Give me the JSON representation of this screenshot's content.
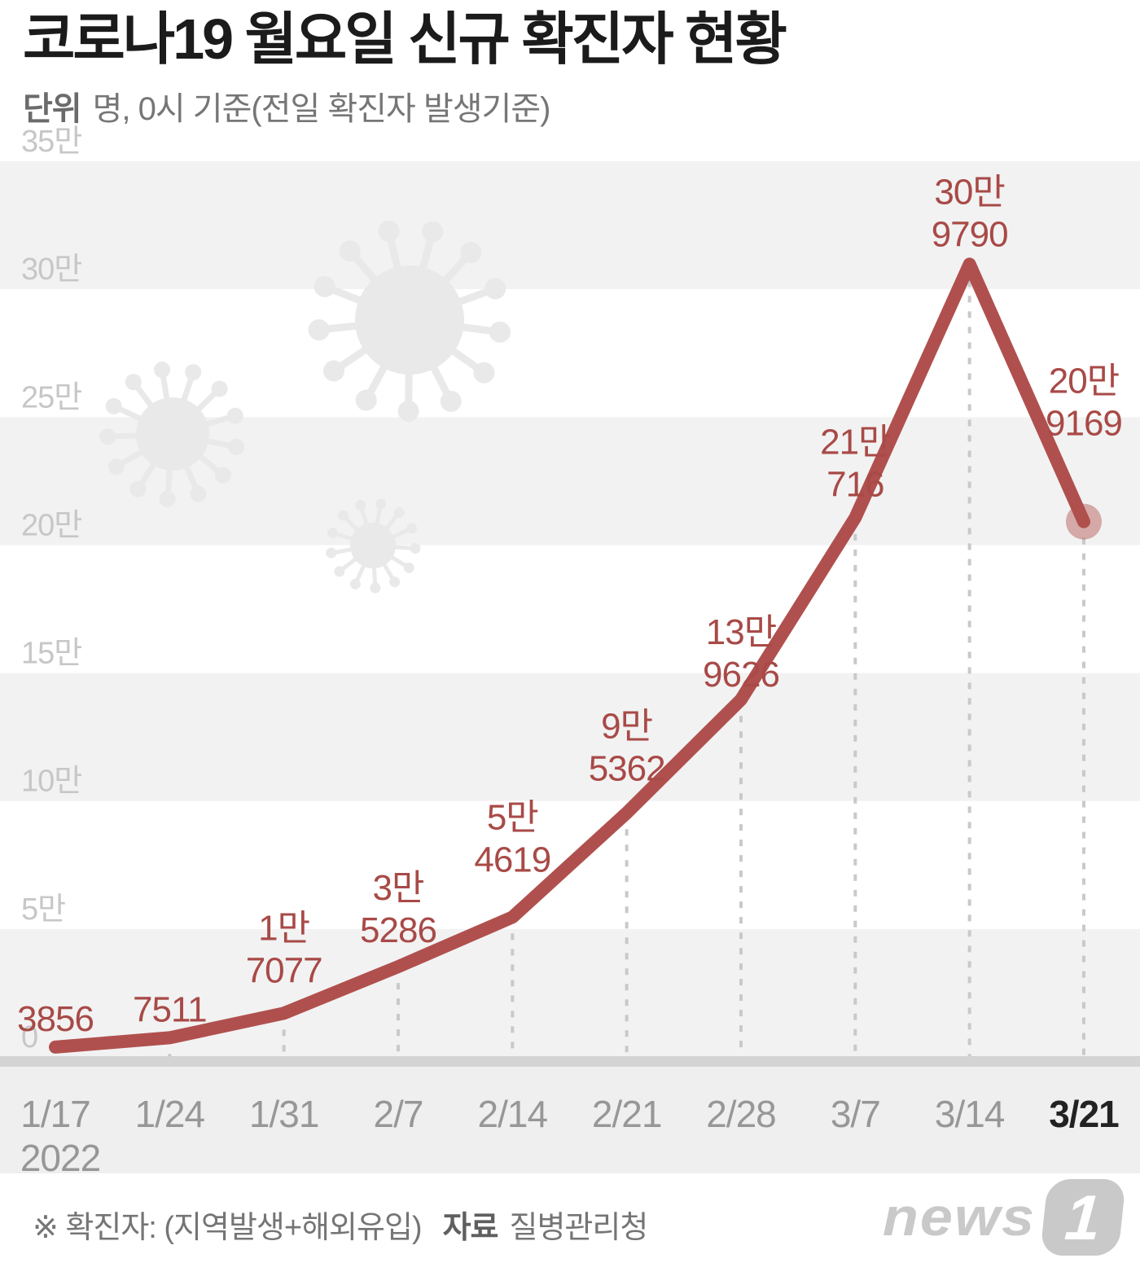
{
  "header": {
    "title": "코로나19 월요일 신규 확진자 현황",
    "subtitle_unit_label": "단위",
    "subtitle_text": "명, 0시 기준(전일 확진자 발생기준)"
  },
  "footer": {
    "note": "※ 확진자: (지역발생+해외유입)",
    "source_label": "자료",
    "source_value": "질병관리청",
    "logo_word": "news",
    "logo_badge": "1"
  },
  "chart_data": {
    "type": "line",
    "title": "코로나19 월요일 신규 확진자 현황",
    "unit": "명, 0시 기준(전일 확진자 발생기준)",
    "x": [
      "1/17",
      "1/24",
      "1/31",
      "2/7",
      "2/14",
      "2/21",
      "2/28",
      "3/7",
      "3/14",
      "3/21"
    ],
    "x_year_label": "2022",
    "values": [
      3856,
      7511,
      17077,
      35286,
      54619,
      95362,
      139626,
      210716,
      309790,
      209169
    ],
    "point_labels": [
      [
        "3856"
      ],
      [
        "7511"
      ],
      [
        "1만",
        "7077"
      ],
      [
        "3만",
        "5286"
      ],
      [
        "5만",
        "4619"
      ],
      [
        "9만",
        "5362"
      ],
      [
        "13만",
        "9626"
      ],
      [
        "21만",
        "716"
      ],
      [
        "30만",
        "9790"
      ],
      [
        "20만",
        "9169"
      ]
    ],
    "y_tick_labels": [
      "0",
      "5만",
      "10만",
      "15만",
      "20만",
      "25만",
      "30만",
      "35만"
    ],
    "y_tick_values": [
      0,
      50000,
      100000,
      150000,
      200000,
      250000,
      300000,
      350000
    ],
    "ylim": [
      0,
      350000
    ],
    "grid": "striped-bands",
    "legend": "none",
    "colors": {
      "line": "#b0504e",
      "data_label": "#a84a47",
      "end_marker": "rgba(176,80,78,0.45)",
      "stripe": "#f2f2f2",
      "axis_bar": "#d4d4d4",
      "x_band": "#efefef",
      "y_tick": "#c7c7c7",
      "x_label": "#979797",
      "x_label_last": "#222222",
      "drop_line": "#c9c9c9",
      "virus_icon": "#e9e9e9"
    }
  }
}
